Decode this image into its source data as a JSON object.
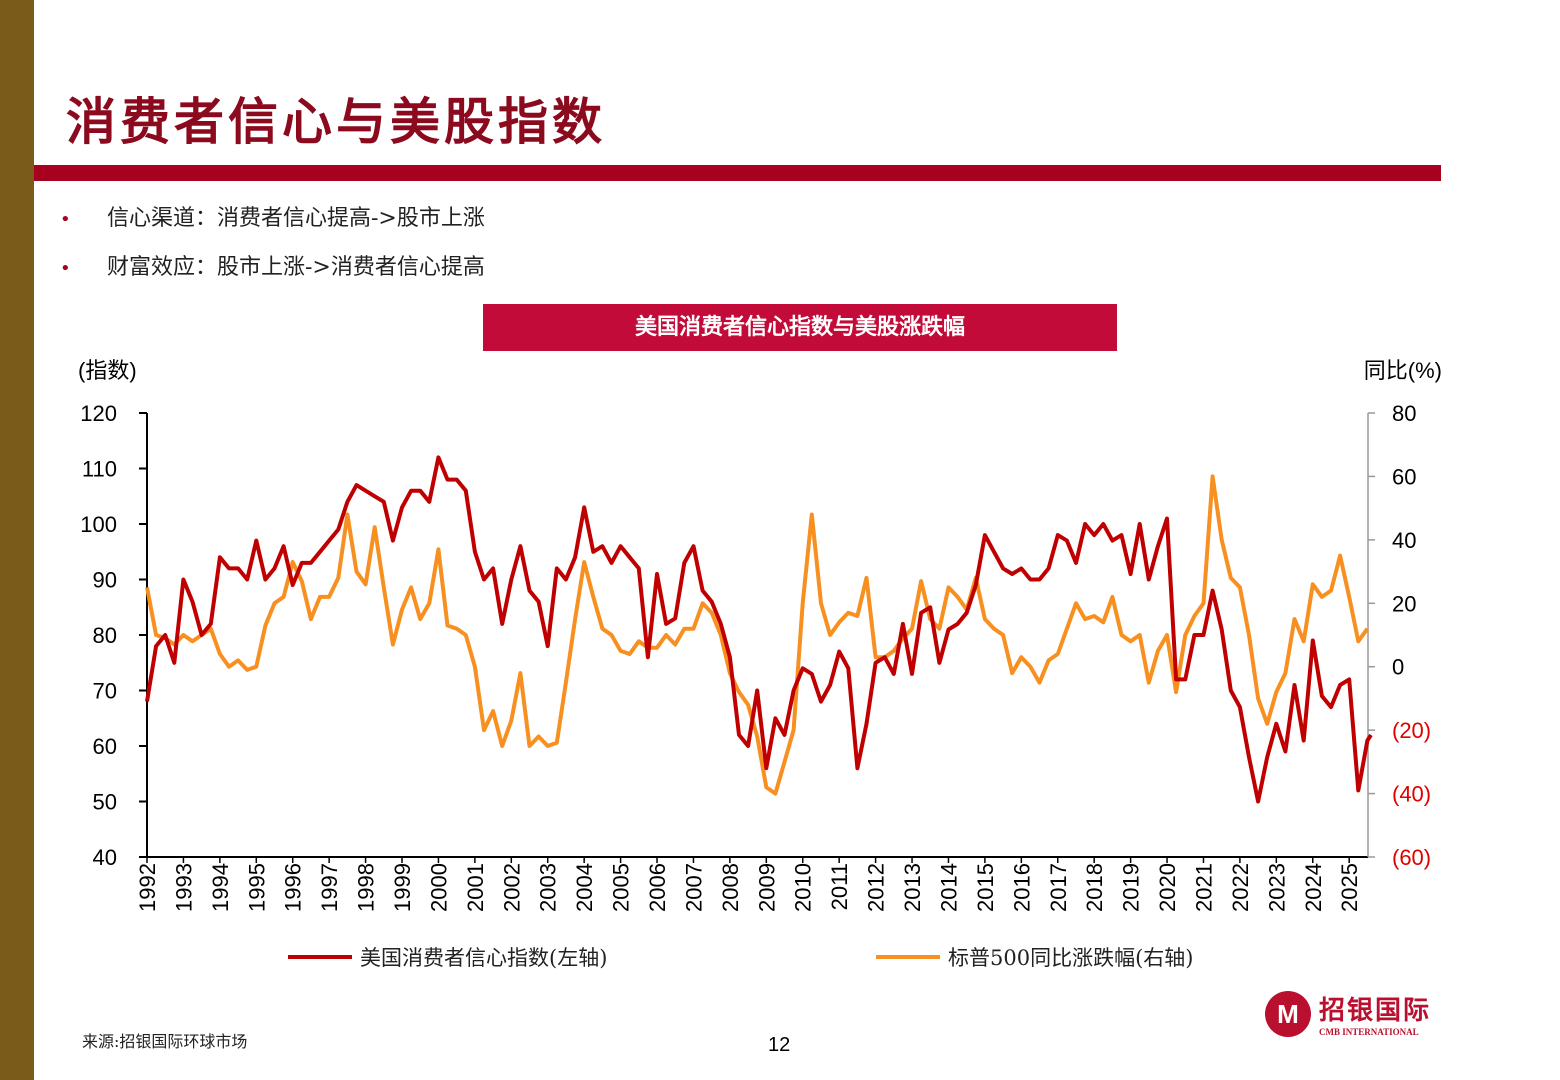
{
  "slide": {
    "title": "消费者信心与美股指数",
    "bullets": [
      "信心渠道：消费者信心提高->股市上涨",
      "财富效应：股市上涨->消费者信心提高"
    ],
    "source": "来源:招银国际环球市场",
    "page_number": "12",
    "logo": {
      "cn": "招银国际",
      "en": "CMB INTERNATIONAL",
      "mark": "M"
    },
    "colors": {
      "sidebar": "#7b5b1a",
      "accent": "#a8001f",
      "chart_title_bg": "#c20b38"
    }
  },
  "chart_data": {
    "type": "line",
    "title": "美国消费者信心指数与美股涨跌幅",
    "ylabel_left": "(指数)",
    "ylabel_right": "同比(%)",
    "ylim_left": [
      40,
      120
    ],
    "ylim_right": [
      -60,
      80
    ],
    "left_ticks": [
      "120",
      "110",
      "100",
      "90",
      "80",
      "70",
      "60",
      "50",
      "40"
    ],
    "right_ticks": [
      "80",
      "60",
      "40",
      "20",
      "0",
      "(20)",
      "(40)",
      "(60)"
    ],
    "x_ticks": [
      "1992",
      "1993",
      "1994",
      "1995",
      "1996",
      "1997",
      "1998",
      "1999",
      "2000",
      "2001",
      "2002",
      "2003",
      "2004",
      "2005",
      "2006",
      "2007",
      "2008",
      "2009",
      "2010",
      "2011",
      "2012",
      "2013",
      "2014",
      "2015",
      "2016",
      "2017",
      "2018",
      "2019",
      "2020",
      "2021",
      "2022",
      "2023",
      "2024",
      "2025"
    ],
    "grid": false,
    "legend_position": "bottom",
    "series": [
      {
        "name": "美国消费者信心指数(左轴)",
        "axis": "left",
        "color": "#c00000",
        "x": [
          1992.0,
          1992.25,
          1992.5,
          1992.75,
          1993.0,
          1993.25,
          1993.5,
          1993.75,
          1994.0,
          1994.25,
          1994.5,
          1994.75,
          1995.0,
          1995.25,
          1995.5,
          1995.75,
          1996.0,
          1996.25,
          1996.5,
          1996.75,
          1997.0,
          1997.25,
          1997.5,
          1997.75,
          1998.0,
          1998.25,
          1998.5,
          1998.75,
          1999.0,
          1999.25,
          1999.5,
          1999.75,
          2000.0,
          2000.25,
          2000.5,
          2000.75,
          2001.0,
          2001.25,
          2001.5,
          2001.75,
          2002.0,
          2002.25,
          2002.5,
          2002.75,
          2003.0,
          2003.25,
          2003.5,
          2003.75,
          2004.0,
          2004.25,
          2004.5,
          2004.75,
          2005.0,
          2005.25,
          2005.5,
          2005.75,
          2006.0,
          2006.25,
          2006.5,
          2006.75,
          2007.0,
          2007.25,
          2007.5,
          2007.75,
          2008.0,
          2008.25,
          2008.5,
          2008.75,
          2009.0,
          2009.25,
          2009.5,
          2009.75,
          2010.0,
          2010.25,
          2010.5,
          2010.75,
          2011.0,
          2011.25,
          2011.5,
          2011.75,
          2012.0,
          2012.25,
          2012.5,
          2012.75,
          2013.0,
          2013.25,
          2013.5,
          2013.75,
          2014.0,
          2014.25,
          2014.5,
          2014.75,
          2015.0,
          2015.25,
          2015.5,
          2015.75,
          2016.0,
          2016.25,
          2016.5,
          2016.75,
          2017.0,
          2017.25,
          2017.5,
          2017.75,
          2018.0,
          2018.25,
          2018.5,
          2018.75,
          2019.0,
          2019.25,
          2019.5,
          2019.75,
          2020.0,
          2020.25,
          2020.5,
          2020.75,
          2021.0,
          2021.25,
          2021.5,
          2021.75,
          2022.0,
          2022.25,
          2022.5,
          2022.75,
          2023.0,
          2023.25,
          2023.5,
          2023.75,
          2024.0,
          2024.25,
          2024.5,
          2024.75,
          2025.0,
          2025.25,
          2025.5,
          2025.6
        ],
        "values": [
          68,
          78,
          80,
          75,
          90,
          86,
          80,
          82,
          94,
          92,
          92,
          90,
          97,
          90,
          92,
          96,
          89,
          93,
          93,
          95,
          97,
          99,
          104,
          107,
          106,
          105,
          104,
          97,
          103,
          106,
          106,
          104,
          112,
          108,
          108,
          106,
          95,
          90,
          92,
          82,
          90,
          96,
          88,
          86,
          78,
          92,
          90,
          94,
          103,
          95,
          96,
          93,
          96,
          94,
          92,
          76,
          91,
          82,
          83,
          93,
          96,
          88,
          86,
          82,
          76,
          62,
          60,
          70,
          56,
          65,
          62,
          70,
          74,
          73,
          68,
          71,
          77,
          74,
          56,
          64,
          75,
          76,
          73,
          82,
          73,
          84,
          85,
          75,
          81,
          82,
          84,
          89,
          98,
          95,
          92,
          91,
          92,
          90,
          90,
          92,
          98,
          97,
          93,
          100,
          98,
          100,
          97,
          98,
          91,
          100,
          90,
          96,
          101,
          72,
          72,
          80,
          80,
          88,
          81,
          70,
          67,
          58,
          50,
          58,
          64,
          59,
          71,
          61,
          79,
          69,
          67,
          71,
          72,
          52,
          61,
          62
        ]
      },
      {
        "name": "标普500同比涨跌幅(右轴)",
        "axis": "right",
        "color": "#f79020",
        "x": [
          1992.0,
          1992.25,
          1992.5,
          1992.75,
          1993.0,
          1993.25,
          1993.5,
          1993.75,
          1994.0,
          1994.25,
          1994.5,
          1994.75,
          1995.0,
          1995.25,
          1995.5,
          1995.75,
          1996.0,
          1996.25,
          1996.5,
          1996.75,
          1997.0,
          1997.25,
          1997.5,
          1997.75,
          1998.0,
          1998.25,
          1998.5,
          1998.75,
          1999.0,
          1999.25,
          1999.5,
          1999.75,
          2000.0,
          2000.25,
          2000.5,
          2000.75,
          2001.0,
          2001.25,
          2001.5,
          2001.75,
          2002.0,
          2002.25,
          2002.5,
          2002.75,
          2003.0,
          2003.25,
          2003.5,
          2003.75,
          2004.0,
          2004.25,
          2004.5,
          2004.75,
          2005.0,
          2005.25,
          2005.5,
          2005.75,
          2006.0,
          2006.25,
          2006.5,
          2006.75,
          2007.0,
          2007.25,
          2007.5,
          2007.75,
          2008.0,
          2008.25,
          2008.5,
          2008.75,
          2009.0,
          2009.25,
          2009.5,
          2009.75,
          2010.0,
          2010.25,
          2010.5,
          2010.75,
          2011.0,
          2011.25,
          2011.5,
          2011.75,
          2012.0,
          2012.25,
          2012.5,
          2012.75,
          2013.0,
          2013.25,
          2013.5,
          2013.75,
          2014.0,
          2014.25,
          2014.5,
          2014.75,
          2015.0,
          2015.25,
          2015.5,
          2015.75,
          2016.0,
          2016.25,
          2016.5,
          2016.75,
          2017.0,
          2017.25,
          2017.5,
          2017.75,
          2018.0,
          2018.25,
          2018.5,
          2018.75,
          2019.0,
          2019.25,
          2019.5,
          2019.75,
          2020.0,
          2020.25,
          2020.5,
          2020.75,
          2021.0,
          2021.25,
          2021.5,
          2021.75,
          2022.0,
          2022.25,
          2022.5,
          2022.75,
          2023.0,
          2023.25,
          2023.5,
          2023.75,
          2024.0,
          2024.25,
          2024.5,
          2024.75,
          2025.0,
          2025.25,
          2025.5
        ],
        "values": [
          25,
          10,
          9,
          7,
          10,
          8,
          10,
          12,
          4,
          0,
          2,
          -1,
          0,
          13,
          20,
          22,
          33,
          27,
          15,
          22,
          22,
          28,
          48,
          30,
          26,
          44,
          25,
          7,
          18,
          25,
          15,
          20,
          37,
          13,
          12,
          10,
          0,
          -20,
          -14,
          -25,
          -17,
          -2,
          -25,
          -22,
          -25,
          -24,
          -5,
          15,
          33,
          22,
          12,
          10,
          5,
          4,
          8,
          6,
          6,
          10,
          7,
          12,
          12,
          20,
          17,
          10,
          -2,
          -8,
          -12,
          -22,
          -38,
          -40,
          -30,
          -20,
          20,
          48,
          20,
          10,
          14,
          17,
          16,
          28,
          3,
          3,
          5,
          9,
          12,
          27,
          15,
          12,
          25,
          22,
          18,
          28,
          15,
          12,
          10,
          -2,
          3,
          0,
          -5,
          2,
          4,
          12,
          20,
          15,
          16,
          14,
          22,
          10,
          8,
          10,
          -5,
          5,
          10,
          -8,
          10,
          16,
          20,
          60,
          40,
          28,
          25,
          10,
          -10,
          -18,
          -8,
          -2,
          15,
          8,
          26,
          22,
          24,
          35,
          22,
          8,
          12
        ]
      }
    ]
  }
}
